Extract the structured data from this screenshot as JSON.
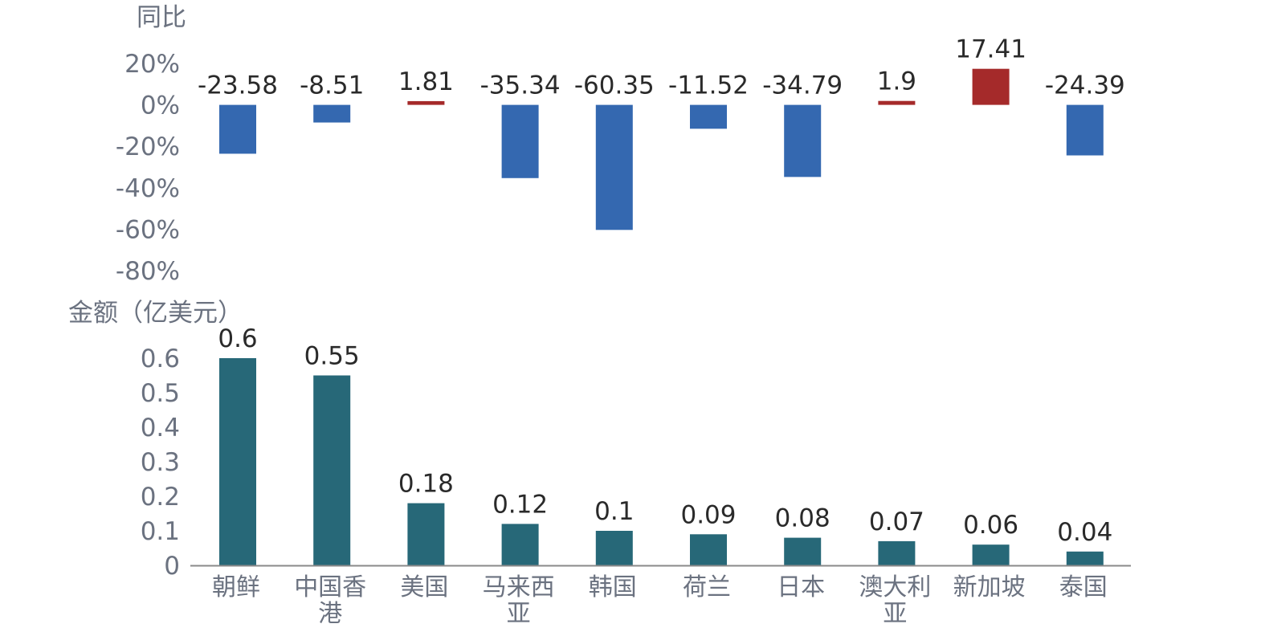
{
  "chart_data": [
    {
      "type": "bar",
      "title": "",
      "ylabel": "同比",
      "xlabel": "",
      "categories": [
        "朝鲜",
        "中国香港",
        "美国",
        "马来西亚",
        "韩国",
        "荷兰",
        "日本",
        "澳大利亚",
        "新加坡",
        "泰国"
      ],
      "values": [
        -23.58,
        -8.51,
        1.81,
        -35.34,
        -60.35,
        -11.52,
        -34.79,
        1.9,
        17.41,
        -24.39
      ],
      "value_labels": [
        "-23.58",
        "-8.51",
        "1.81",
        "-35.34",
        "-60.35",
        "-11.52",
        "-34.79",
        "1.9",
        "17.41",
        "-24.39"
      ],
      "ylim": [
        -80,
        20
      ],
      "yticks": [
        20,
        0,
        -20,
        -40,
        -60,
        -80
      ],
      "ytick_labels": [
        "20%",
        "0%",
        "-20%",
        "-40%",
        "-60%",
        "-80%"
      ],
      "colors": {
        "positive": "#a52a2a",
        "negative": "#3468b0"
      },
      "grid": false
    },
    {
      "type": "bar",
      "title": "",
      "ylabel": "金额（亿美元）",
      "xlabel": "",
      "categories": [
        "朝鲜",
        "中国香港",
        "美国",
        "马来西亚",
        "韩国",
        "荷兰",
        "日本",
        "澳大利亚",
        "新加坡",
        "泰国"
      ],
      "category_lines": [
        [
          "朝鲜"
        ],
        [
          "中国香",
          "港"
        ],
        [
          "美国"
        ],
        [
          "马来西",
          "亚"
        ],
        [
          "韩国"
        ],
        [
          "荷兰"
        ],
        [
          "日本"
        ],
        [
          "澳大利",
          "亚"
        ],
        [
          "新加坡"
        ],
        [
          "泰国"
        ]
      ],
      "values": [
        0.6,
        0.55,
        0.18,
        0.12,
        0.1,
        0.09,
        0.08,
        0.07,
        0.06,
        0.04
      ],
      "value_labels": [
        "0.6",
        "0.55",
        "0.18",
        "0.12",
        "0.1",
        "0.09",
        "0.08",
        "0.07",
        "0.06",
        "0.04"
      ],
      "ylim": [
        0,
        0.6
      ],
      "yticks": [
        0.6,
        0.5,
        0.4,
        0.3,
        0.2,
        0.1,
        0
      ],
      "ytick_labels": [
        "0.6",
        "0.5",
        "0.4",
        "0.3",
        "0.2",
        "0.1",
        "0"
      ],
      "colors": {
        "bar": "#276878",
        "axis": "#8a8a8a"
      },
      "grid": false
    }
  ]
}
